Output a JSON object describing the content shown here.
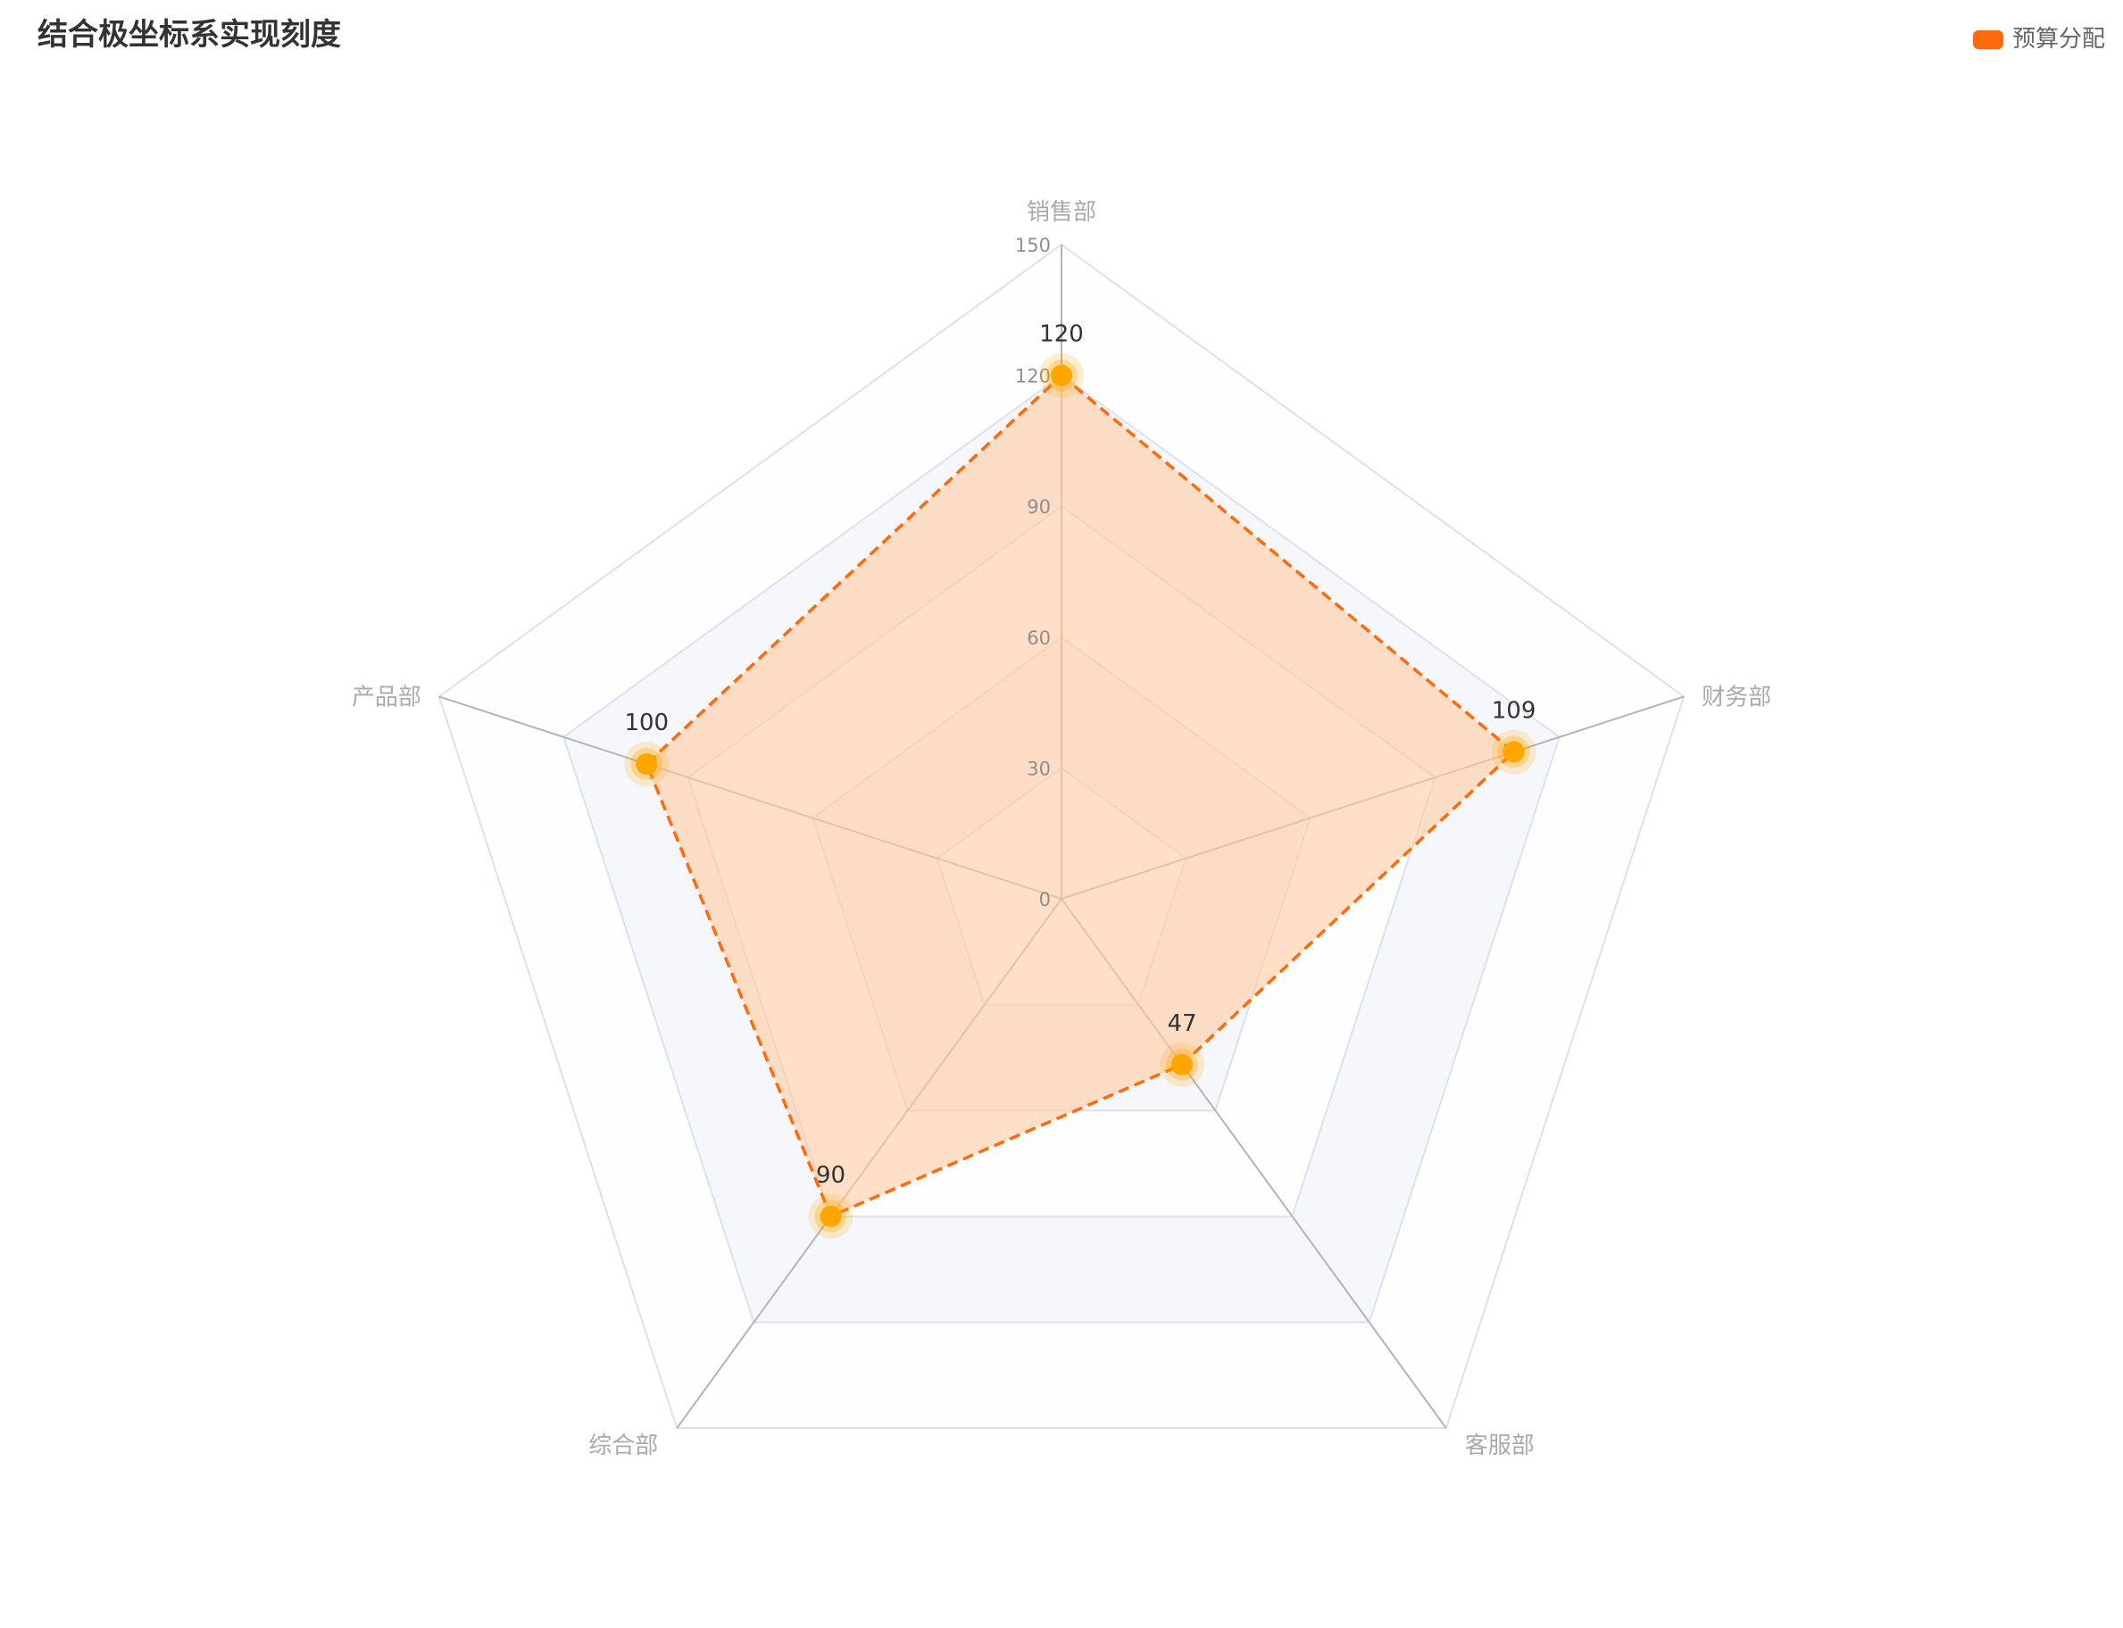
{
  "title": "结合极坐标系实现刻度",
  "colors": {
    "series": "#ff6a0d",
    "point": "#ffa500",
    "area": "#ffcca3",
    "split_area_light": "#f5f7fb",
    "split_area_white": "#fefefe",
    "split_line": "#dde1ea",
    "axis_line": "#b4b4b4"
  },
  "legend": {
    "items": [
      {
        "name": "预算分配",
        "color": "#ff6a0d"
      }
    ]
  },
  "chart_data": {
    "type": "radar",
    "indicators": [
      {
        "name": "销售部",
        "max": 150
      },
      {
        "name": "财务部",
        "max": 150
      },
      {
        "name": "客服部",
        "max": 150
      },
      {
        "name": "综合部",
        "max": 150
      },
      {
        "name": "产品部",
        "max": 150
      }
    ],
    "radial_ticks": [
      "0",
      "30",
      "60",
      "90",
      "120",
      "150"
    ],
    "split_number": 5,
    "shape": "polygon",
    "series": [
      {
        "name": "预算分配",
        "values": [
          120,
          109,
          47,
          90,
          100
        ],
        "line_style": "dashed",
        "show_labels": true
      }
    ],
    "legend_position": "top-right",
    "title": "结合极坐标系实现刻度"
  }
}
